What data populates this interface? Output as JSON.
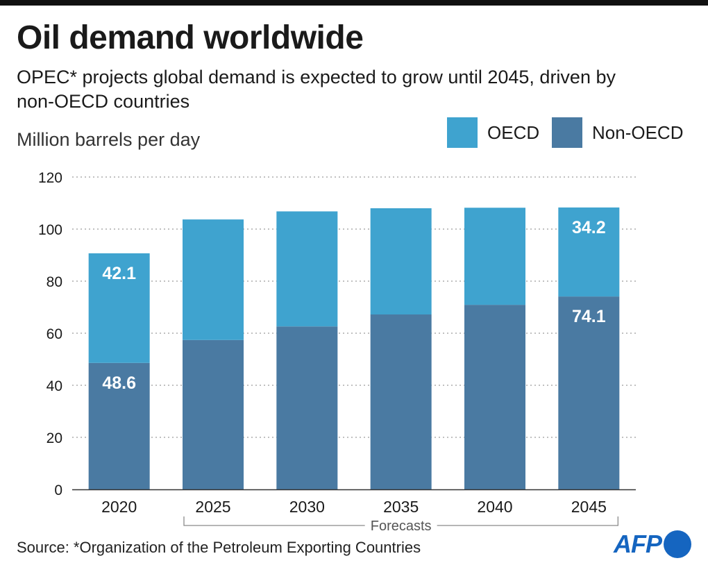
{
  "header": {
    "title": "Oil demand worldwide",
    "subtitle": "OPEC* projects global demand is expected to grow until 2045, driven by non-OECD countries",
    "unit": "Million barrels per day"
  },
  "legend": [
    {
      "label": "OECD",
      "color": "#3fa3cf"
    },
    {
      "label": "Non-OECD",
      "color": "#4a7aa2"
    }
  ],
  "footer": {
    "source": "Source: *Organization of the Petroleum Exporting Countries",
    "logo": "AFP"
  },
  "chart_data": {
    "type": "bar",
    "stacked": true,
    "categories": [
      "2020",
      "2025",
      "2030",
      "2035",
      "2040",
      "2045"
    ],
    "series": [
      {
        "name": "Non-OECD",
        "color": "#4a7aa2",
        "values": [
          48.6,
          57.4,
          62.6,
          67.2,
          70.9,
          74.1
        ]
      },
      {
        "name": "OECD",
        "color": "#3fa3cf",
        "values": [
          42.1,
          46.3,
          44.2,
          40.8,
          37.3,
          34.2
        ]
      }
    ],
    "data_labels": [
      {
        "category": "2020",
        "series": "OECD",
        "text": "42.1"
      },
      {
        "category": "2020",
        "series": "Non-OECD",
        "text": "48.6"
      },
      {
        "category": "2045",
        "series": "OECD",
        "text": "34.2"
      },
      {
        "category": "2045",
        "series": "Non-OECD",
        "text": "74.1"
      }
    ],
    "ylim": [
      0,
      120
    ],
    "yticks": [
      0,
      20,
      40,
      60,
      80,
      100,
      120
    ],
    "grid": true,
    "annotation": {
      "text": "Forecasts",
      "from": "2025",
      "to": "2045"
    }
  }
}
